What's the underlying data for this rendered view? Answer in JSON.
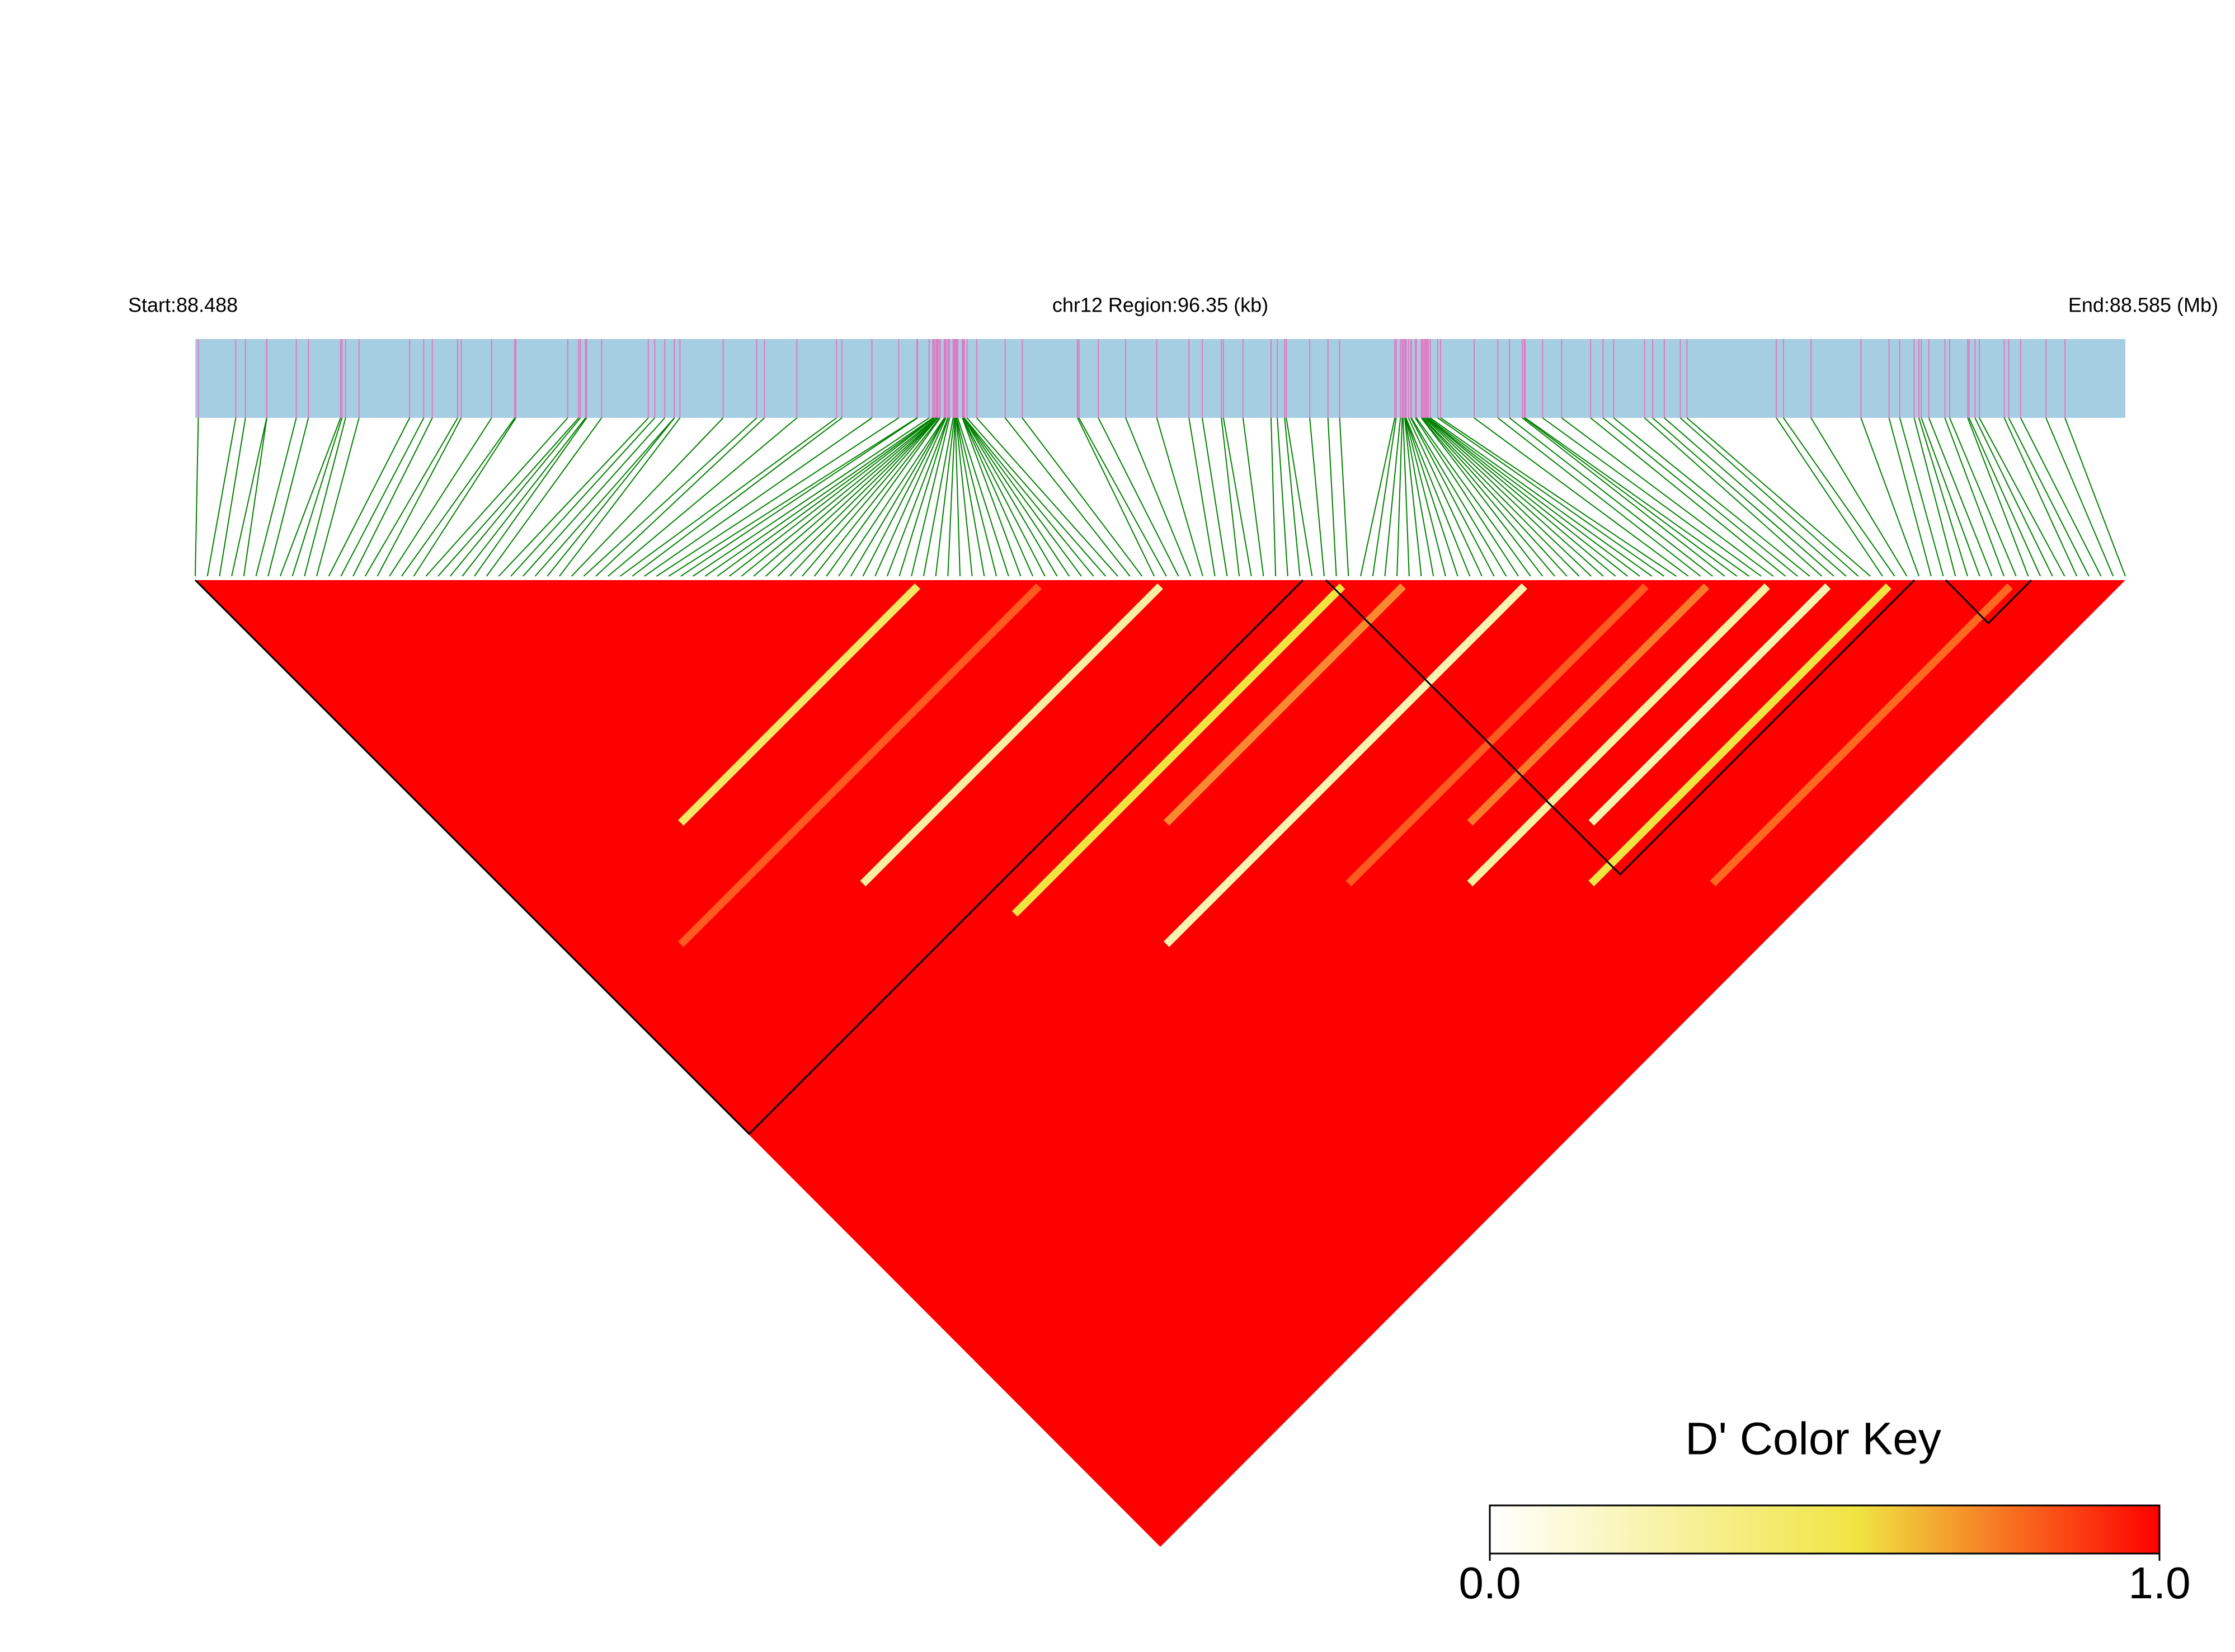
{
  "chart_data": {
    "type": "ld_heatmap",
    "start_label": "Start:88.488",
    "region_label": "chr12 Region:96.35 (kb)",
    "end_label": "End:88.585 (Mb)",
    "color_key_title": "D' Color Key",
    "clim": [
      0,
      1
    ],
    "cticks": [
      {
        "value": 0,
        "label": "0.0"
      },
      {
        "value": 1,
        "label": "1.0"
      }
    ],
    "colors": [
      "#ffffff",
      "#f0e442",
      "#ff0000"
    ]
  }
}
